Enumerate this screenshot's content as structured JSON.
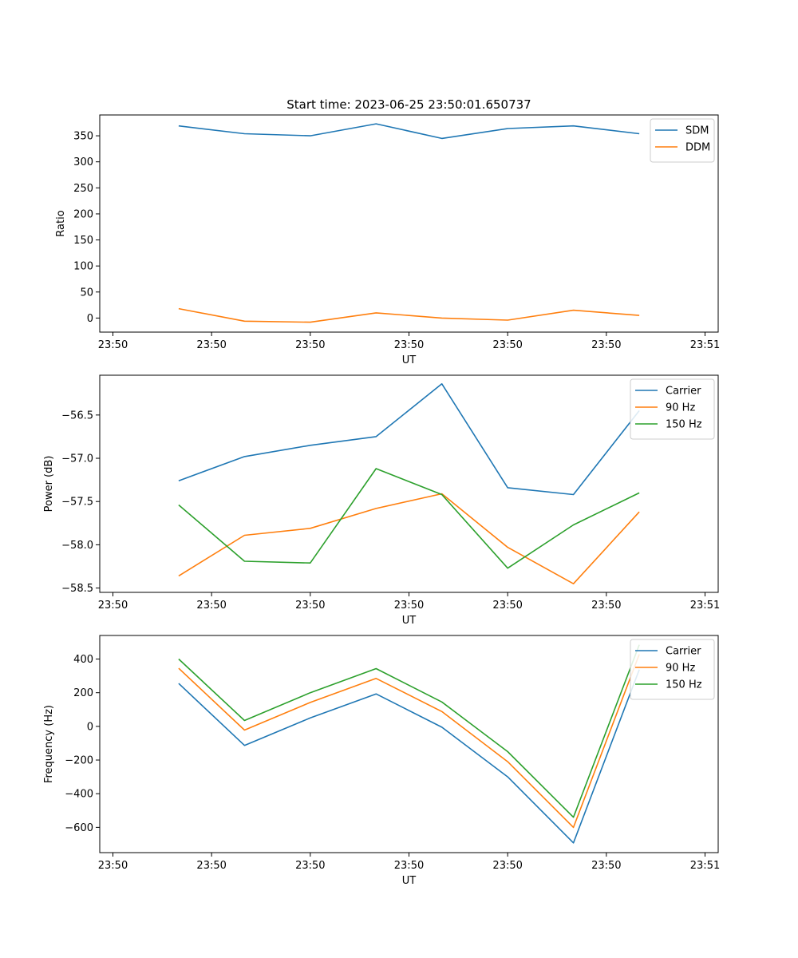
{
  "figure": {
    "title": "Start time: 2023-06-25 23:50:01.650737"
  },
  "chart_data": [
    {
      "type": "line",
      "xlabel": "UT",
      "ylabel": "Ratio",
      "x_tick_labels": [
        "23:50",
        "23:50",
        "23:50",
        "23:50",
        "23:50",
        "23:50",
        "23:51"
      ],
      "xlim": [
        -0.2,
        9.2
      ],
      "x": [
        1,
        2,
        3,
        4,
        5,
        6,
        7,
        8
      ],
      "ylim": [
        -27,
        390
      ],
      "yticks": [
        0,
        50,
        100,
        150,
        200,
        250,
        300,
        350
      ],
      "legend": "top-right",
      "series": [
        {
          "name": "SDM",
          "color": "#1f77b4",
          "values": [
            369,
            354,
            350,
            373,
            345,
            364,
            369,
            354
          ]
        },
        {
          "name": "DDM",
          "color": "#ff7f0e",
          "values": [
            18,
            -6,
            -8,
            10,
            0,
            -4,
            15,
            5
          ]
        }
      ]
    },
    {
      "type": "line",
      "xlabel": "UT",
      "ylabel": "Power (dB)",
      "x_tick_labels": [
        "23:50",
        "23:50",
        "23:50",
        "23:50",
        "23:50",
        "23:50",
        "23:51"
      ],
      "xlim": [
        -0.2,
        9.2
      ],
      "x": [
        1,
        2,
        3,
        4,
        5,
        6,
        7,
        8
      ],
      "ylim": [
        -58.55,
        -56.04
      ],
      "yticks": [
        -58.5,
        -58.0,
        -57.5,
        -57.0,
        -56.5
      ],
      "ytick_labels": [
        "−58.5",
        "−58.0",
        "−57.5",
        "−57.0",
        "−56.5"
      ],
      "legend": "top-right",
      "series": [
        {
          "name": "Carrier",
          "color": "#1f77b4",
          "values": [
            -57.26,
            -56.98,
            -56.85,
            -56.75,
            -56.14,
            -57.34,
            -57.42,
            -56.45
          ]
        },
        {
          "name": "90 Hz",
          "color": "#ff7f0e",
          "values": [
            -58.36,
            -57.89,
            -57.81,
            -57.58,
            -57.41,
            -58.03,
            -58.45,
            -57.62
          ]
        },
        {
          "name": "150 Hz",
          "color": "#2ca02c",
          "values": [
            -57.54,
            -58.19,
            -58.21,
            -57.12,
            -57.42,
            -58.27,
            -57.77,
            -57.4
          ]
        }
      ]
    },
    {
      "type": "line",
      "xlabel": "UT",
      "ylabel": "Frequency (Hz)",
      "x_tick_labels": [
        "23:50",
        "23:50",
        "23:50",
        "23:50",
        "23:50",
        "23:50",
        "23:51"
      ],
      "xlim": [
        -0.2,
        9.2
      ],
      "x": [
        1,
        2,
        3,
        4,
        5,
        6,
        7,
        8
      ],
      "ylim": [
        -750,
        540
      ],
      "yticks": [
        -600,
        -400,
        -200,
        0,
        200,
        400
      ],
      "ytick_labels": [
        "−600",
        "−400",
        "−200",
        "0",
        "200",
        "400"
      ],
      "legend": "top-right",
      "series": [
        {
          "name": "Carrier",
          "color": "#1f77b4",
          "values": [
            255,
            -113,
            50,
            193,
            -5,
            -300,
            -692,
            337
          ]
        },
        {
          "name": "90 Hz",
          "color": "#ff7f0e",
          "values": [
            345,
            -22,
            142,
            285,
            88,
            -210,
            -600,
            428
          ]
        },
        {
          "name": "150 Hz",
          "color": "#2ca02c",
          "values": [
            400,
            35,
            200,
            343,
            145,
            -150,
            -540,
            485
          ]
        }
      ]
    }
  ]
}
